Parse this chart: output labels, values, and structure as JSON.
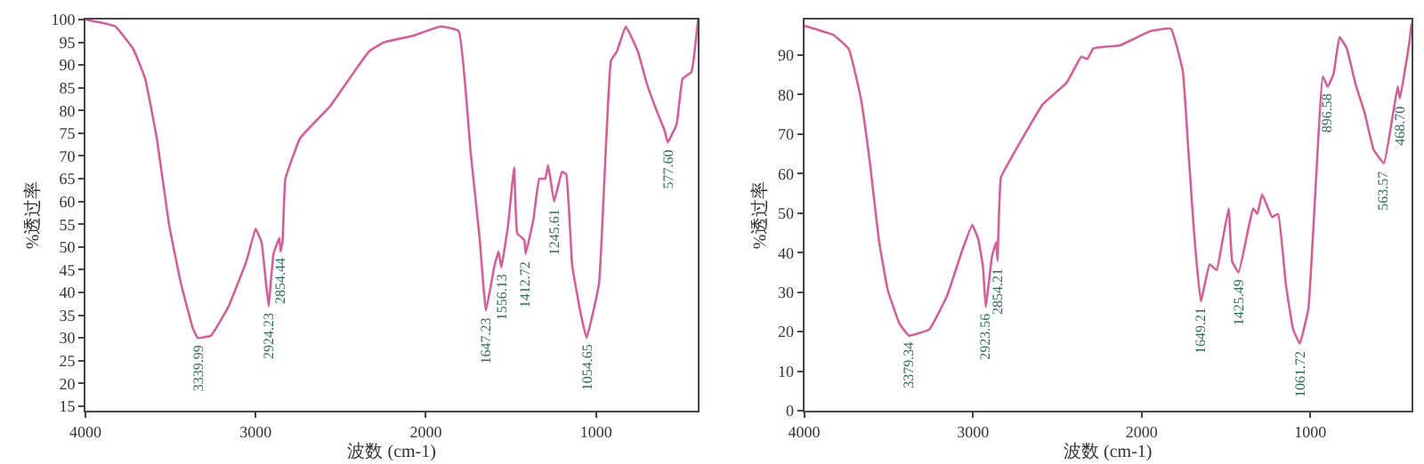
{
  "chart_data": [
    {
      "type": "line",
      "xlabel": "波数 (cm-1)",
      "ylabel": "%透过率",
      "color": "#d4609a",
      "marker": "none",
      "line_style": "solid",
      "xlim": [
        4000,
        400
      ],
      "xticks": [
        4000,
        3000,
        2000,
        1000
      ],
      "ylim": [
        14,
        100
      ],
      "yticks": [
        15,
        20,
        25,
        30,
        35,
        40,
        45,
        50,
        55,
        60,
        65,
        70,
        75,
        80,
        85,
        90,
        95,
        100
      ],
      "x": [
        4000,
        3825,
        3719,
        3649,
        3579,
        3509,
        3439,
        3368,
        3340,
        3263,
        3158,
        3053,
        3000,
        2965,
        2947,
        2924,
        2895,
        2860,
        2854,
        2842,
        2825,
        2737,
        2561,
        2421,
        2333,
        2246,
        2070,
        1912,
        1807,
        1737,
        1684,
        1647,
        1596,
        1572,
        1556,
        1516,
        1481,
        1463,
        1421,
        1413,
        1368,
        1333,
        1298,
        1281,
        1246,
        1200,
        1175,
        1140,
        1088,
        1055,
        982,
        912,
        877,
        825,
        754,
        702,
        649,
        596,
        578,
        526,
        491,
        439,
        400
      ],
      "values": [
        100,
        98.5,
        93.5,
        87,
        73.5,
        55,
        42,
        32,
        30,
        30.5,
        37,
        47,
        54,
        51,
        45,
        37,
        48.5,
        52,
        49,
        51,
        65,
        74,
        81,
        88.5,
        93,
        95,
        96.5,
        98.5,
        97.5,
        71,
        52,
        36,
        46,
        49,
        45.5,
        55,
        67.5,
        53,
        51.5,
        48.5,
        56,
        65,
        65,
        68,
        60,
        66.5,
        66,
        46,
        35,
        30,
        42,
        91,
        93,
        98.5,
        93,
        86,
        80.5,
        75.5,
        73,
        77,
        87,
        88.5,
        100
      ],
      "annotations": [
        {
          "text": "3339.99",
          "x": 3340,
          "y": 30
        },
        {
          "text": "2924.23",
          "x": 2924,
          "y": 37
        },
        {
          "text": "2854.44",
          "x": 2854,
          "y": 49
        },
        {
          "text": "1647.23",
          "x": 1647,
          "y": 36
        },
        {
          "text": "1556.13",
          "x": 1556,
          "y": 45.5
        },
        {
          "text": "1412.72",
          "x": 1413,
          "y": 48.5
        },
        {
          "text": "1245.61",
          "x": 1246,
          "y": 60
        },
        {
          "text": "1054.65",
          "x": 1055,
          "y": 30
        },
        {
          "text": "577.60",
          "x": 578,
          "y": 73
        }
      ]
    },
    {
      "type": "line",
      "xlabel": "波数 (cm-1)",
      "ylabel": "%透过率",
      "color": "#d4609a",
      "marker": "none",
      "line_style": "solid",
      "xlim": [
        4000,
        400
      ],
      "xticks": [
        4000,
        3000,
        2000,
        1000
      ],
      "ylim": [
        0,
        99
      ],
      "yticks": [
        0,
        10,
        20,
        30,
        40,
        50,
        60,
        70,
        80,
        90
      ],
      "x": [
        4000,
        3823,
        3735,
        3664,
        3611,
        3558,
        3505,
        3435,
        3379,
        3258,
        3152,
        3064,
        3004,
        2968,
        2940,
        2924,
        2887,
        2862,
        2854,
        2834,
        2763,
        2587,
        2445,
        2357,
        2322,
        2286,
        2127,
        1951,
        1827,
        1756,
        1721,
        1686,
        1649,
        1597,
        1555,
        1519,
        1484,
        1463,
        1425,
        1367,
        1339,
        1314,
        1286,
        1226,
        1191,
        1145,
        1102,
        1062,
        1011,
        926,
        897,
        862,
        827,
        784,
        731,
        678,
        625,
        564,
        509,
        482,
        469,
        413,
        400
      ],
      "values": [
        97.4,
        95,
        91.5,
        79,
        63,
        43.4,
        30.6,
        22,
        19,
        20.6,
        29.2,
        40.5,
        47,
        43.4,
        36.3,
        26.3,
        39,
        42.7,
        38,
        59,
        64.7,
        77.5,
        83,
        89.6,
        89,
        91.7,
        92.5,
        96,
        96.7,
        86,
        64.7,
        43.4,
        27.7,
        37,
        35.6,
        43.4,
        51.2,
        37.7,
        35,
        46.2,
        51.2,
        49.8,
        54.8,
        49,
        49.8,
        32,
        20.6,
        17,
        26,
        84.6,
        82,
        85.3,
        94.6,
        91.7,
        82.5,
        75.4,
        66.1,
        62.6,
        75.4,
        82,
        79,
        93.2,
        98
      ],
      "annotations": [
        {
          "text": "3379.34",
          "x": 3379,
          "y": 19
        },
        {
          "text": "2923.56",
          "x": 2924,
          "y": 26.3
        },
        {
          "text": "2854.21",
          "x": 2854,
          "y": 38
        },
        {
          "text": "1649.21",
          "x": 1649,
          "y": 27.7
        },
        {
          "text": "1425.49",
          "x": 1425,
          "y": 35
        },
        {
          "text": "1061.72",
          "x": 1062,
          "y": 17
        },
        {
          "text": "896.58",
          "x": 897,
          "y": 82
        },
        {
          "text": "563.57",
          "x": 564,
          "y": 62.6
        },
        {
          "text": "468.70",
          "x": 469,
          "y": 79
        }
      ]
    }
  ]
}
